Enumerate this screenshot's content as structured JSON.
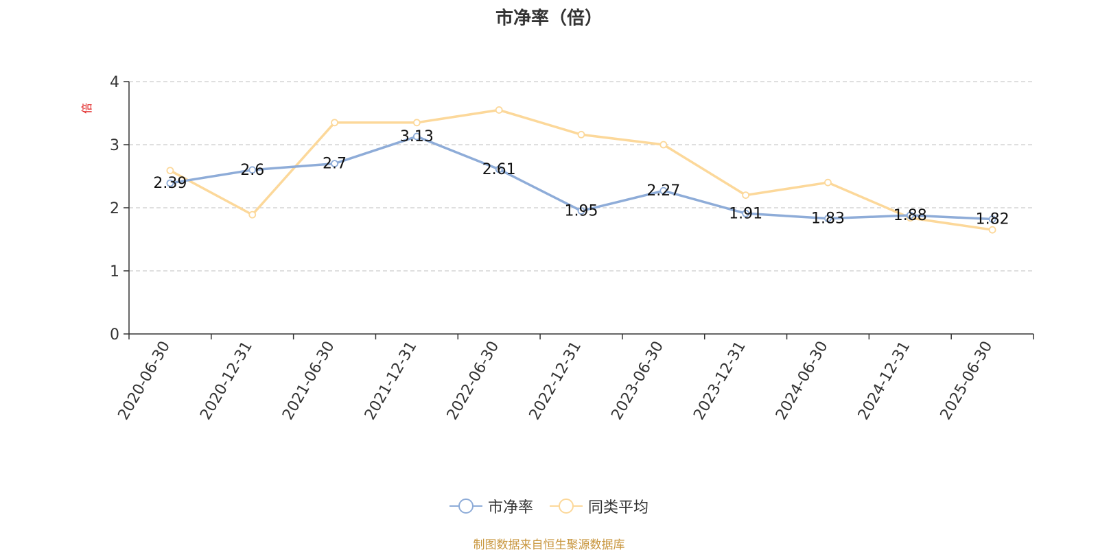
{
  "chart_data": {
    "type": "line",
    "title": "市净率（倍）",
    "ylabel": "倍",
    "xlabel": "",
    "ylim": [
      0,
      4
    ],
    "yticks": [
      0,
      1,
      2,
      3,
      4
    ],
    "grid": true,
    "legend_position": "bottom",
    "categories": [
      "2020-06-30",
      "2020-12-31",
      "2021-06-30",
      "2021-12-31",
      "2022-06-30",
      "2022-12-31",
      "2023-06-30",
      "2023-12-31",
      "2024-06-30",
      "2024-12-31",
      "2025-06-30"
    ],
    "series": [
      {
        "name": "市净率",
        "color": "#8eacd8",
        "show_labels": true,
        "values": [
          2.39,
          2.6,
          2.7,
          3.13,
          2.61,
          1.95,
          2.27,
          1.91,
          1.83,
          1.88,
          1.82
        ]
      },
      {
        "name": "同类平均",
        "color": "#fcd89a",
        "show_labels": false,
        "values": [
          2.59,
          1.89,
          3.35,
          3.35,
          3.55,
          3.16,
          3.0,
          2.2,
          2.4,
          1.84,
          1.65
        ]
      }
    ]
  },
  "footer": {
    "source": "制图数据来自恒生聚源数据库"
  }
}
